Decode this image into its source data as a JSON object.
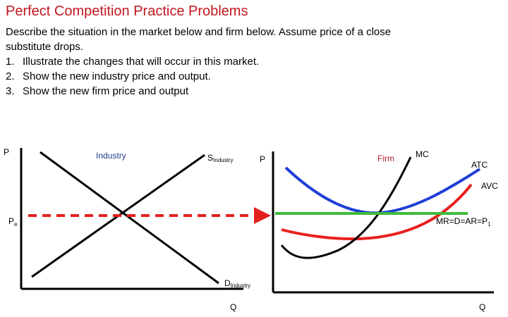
{
  "title": "Perfect Competition Practice Problems",
  "description": {
    "intro_line1": "Describe the situation in the market below and firm below. Assume price of a close",
    "intro_line2": "substitute drops.",
    "items": [
      {
        "num": "1.",
        "text": "Illustrate the changes that will occur in this market."
      },
      {
        "num": "2.",
        "text": "Show the new industry price and output."
      },
      {
        "num": "3.",
        "text": "Show the new firm price and output"
      }
    ]
  },
  "market": {
    "label": "Industry",
    "y_axis": "P",
    "x_axis": "Q",
    "price_label": "P",
    "price_sub": "e",
    "supply_label": "S",
    "supply_sub": "Industry",
    "demand_label": "D",
    "demand_sub": "Industry"
  },
  "firm": {
    "label": "Firm",
    "y_axis": "P",
    "x_axis": "Q",
    "mc": "MC",
    "atc": "ATC",
    "avc": "AVC",
    "mr_label": "MR=D=AR=P",
    "mr_sub": "1"
  },
  "colors": {
    "title": "#c0171f",
    "industry_label": "#1f3c88",
    "firm_label": "#b01c28",
    "atc": "#1f3fd6",
    "avc": "#e8201e",
    "mr": "#3dbb3d",
    "dashed": "#e3211e",
    "mc": "#000000"
  }
}
